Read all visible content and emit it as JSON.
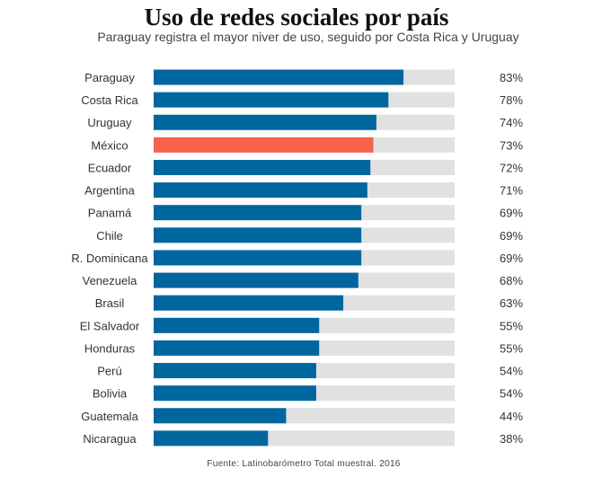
{
  "chart_data": {
    "type": "bar",
    "orientation": "horizontal",
    "title": "Uso de redes sociales por país",
    "subtitle": "Paraguay registra el mayor niver de uso, seguido por Costa Rica y Uruguay",
    "source": "Fuente: Latinobarómetro Total muestral. 2016",
    "categories": [
      "Paraguay",
      "Costa Rica",
      "Uruguay",
      "México",
      "Ecuador",
      "Argentina",
      "Panamá",
      "Chile",
      "R. Dominicana",
      "Venezuela",
      "Brasil",
      "El Salvador",
      "Honduras",
      "Perú",
      "Bolivia",
      "Guatemala",
      "Nicaragua"
    ],
    "values": [
      83,
      78,
      74,
      73,
      72,
      71,
      69,
      69,
      69,
      68,
      63,
      55,
      55,
      54,
      54,
      44,
      38
    ],
    "value_labels": [
      "83%",
      "78%",
      "74%",
      "73%",
      "72%",
      "71%",
      "69%",
      "69%",
      "69%",
      "68%",
      "63%",
      "55%",
      "55%",
      "54%",
      "54%",
      "44%",
      "38%"
    ],
    "xlim": [
      0,
      100
    ],
    "highlight": "México",
    "grid": false,
    "legend": "none",
    "colors": {
      "bar": "#00669e",
      "highlight": "#f7624b",
      "track": "#e1e1e1"
    }
  }
}
